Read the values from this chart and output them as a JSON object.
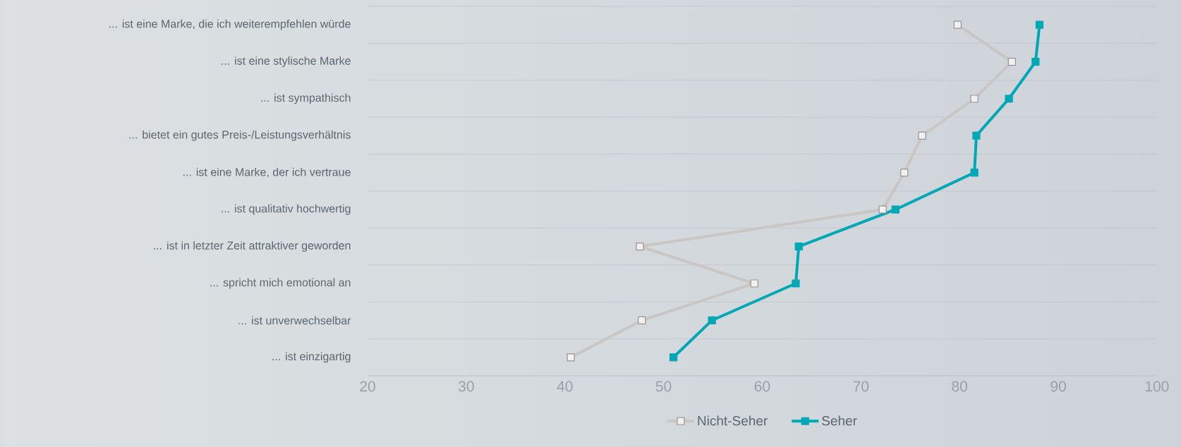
{
  "chart_data": {
    "type": "line",
    "orientation": "horizontal",
    "categories": [
      "... ist eine Marke, die ich weiterempfehlen würde",
      "... ist eine stylische Marke",
      "... ist sympathisch",
      "... bietet ein gutes Preis-/Leistungsverhältnis",
      "... ist eine Marke, der ich vertraue",
      "... ist qualitativ hochwertig",
      "... ist in letzter Zeit attraktiver geworden",
      "... spricht mich emotional an",
      "... ist unverwechselbar",
      "... ist einzigartig"
    ],
    "series": [
      {
        "name": "Nicht-Seher",
        "color": "#c9c6c3",
        "values": [
          79.8,
          85.3,
          81.5,
          76.2,
          74.4,
          72.2,
          47.6,
          59.2,
          47.8,
          40.6
        ]
      },
      {
        "name": "Seher",
        "color": "#00a7b5",
        "values": [
          88.1,
          87.7,
          85.0,
          81.7,
          81.5,
          73.5,
          63.7,
          63.4,
          54.9,
          51.0
        ]
      }
    ],
    "xlim": [
      20,
      100
    ],
    "xticks": [
      20,
      30,
      40,
      50,
      60,
      70,
      80,
      90,
      100
    ],
    "grid": "y",
    "legend": "bottom",
    "marker": "square",
    "line_style": "solid"
  }
}
